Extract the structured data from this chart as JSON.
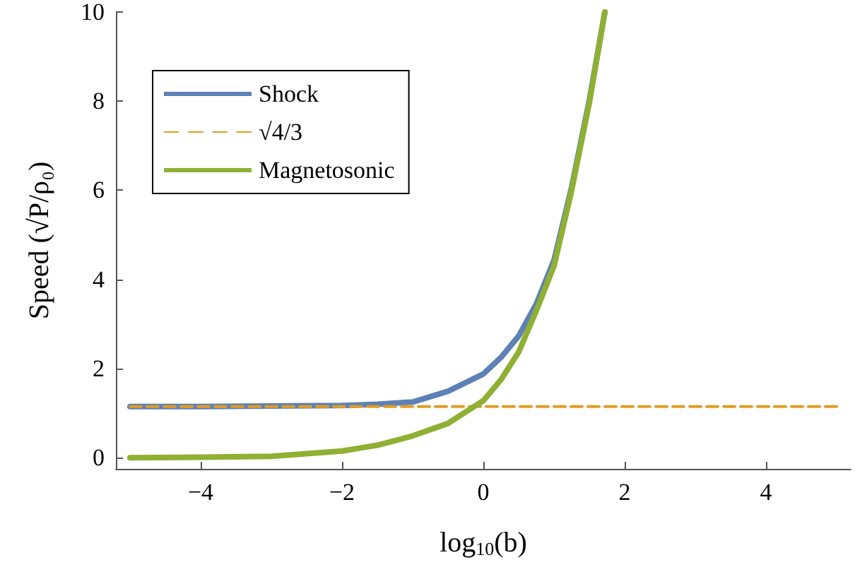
{
  "chart_data": {
    "type": "line",
    "xlabel": "log$_{10}$(b)",
    "ylabel": "Speed (√P/ρ₀)",
    "xlim": [
      -5.2,
      5.2
    ],
    "ylim": [
      -0.25,
      10
    ],
    "xticks": [
      {
        "value": -4,
        "label": "−4"
      },
      {
        "value": -2,
        "label": "−2"
      },
      0,
      2,
      4
    ],
    "yticks": [
      0,
      2,
      4,
      6,
      8,
      10
    ],
    "grid": false,
    "legend": "top left",
    "marker": "none",
    "series": [
      {
        "name": "Shock",
        "color": "#5e81b5",
        "line_style": "solid",
        "x": [
          -5,
          -4,
          -3,
          -2,
          -1.5,
          -1,
          -0.5,
          0,
          0.25,
          0.5,
          0.75,
          1,
          1.25,
          1.5,
          1.72
        ],
        "values": [
          1.15,
          1.15,
          1.16,
          1.17,
          1.2,
          1.25,
          1.49,
          1.88,
          2.25,
          2.73,
          3.45,
          4.43,
          6.07,
          8.02,
          10
        ]
      },
      {
        "name": "√4/3",
        "color": "#e19c24",
        "line_style": "dashed",
        "x": [
          -5,
          5
        ],
        "values": [
          1.15,
          1.15
        ]
      },
      {
        "name": "Magnetosonic",
        "color": "#8fb032",
        "line_style": "solid",
        "x": [
          -5,
          -4,
          -3,
          -2,
          -1.5,
          -1,
          -0.5,
          0,
          0.25,
          0.5,
          0.75,
          1,
          1.25,
          1.5,
          1.72
        ],
        "values": [
          0,
          0.01,
          0.03,
          0.15,
          0.28,
          0.49,
          0.77,
          1.28,
          1.75,
          2.37,
          3.3,
          4.3,
          6.0,
          7.96,
          10
        ]
      }
    ]
  }
}
